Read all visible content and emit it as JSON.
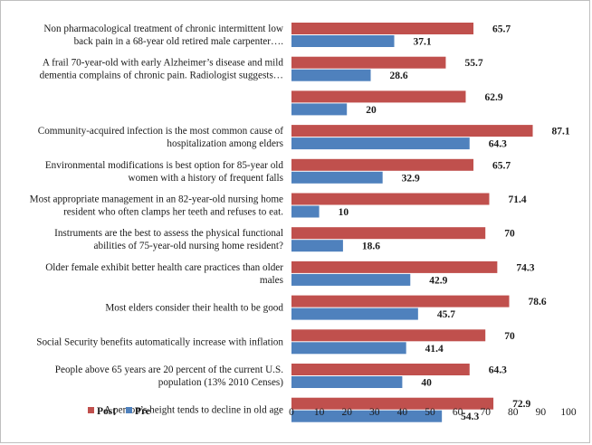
{
  "chart_data": {
    "type": "bar",
    "orientation": "horizontal",
    "categories": [
      [
        "Non pharmacological treatment of chronic intermittent low",
        "back pain in a 68-year old retired male carpenter…."
      ],
      [
        "A frail 70-year-old with early Alzheimer’s disease and mild",
        "dementia complains of chronic pain. Radiologist suggests…"
      ],
      [],
      [
        "Community-acquired infection is the most common cause of",
        "hospitalization among elders"
      ],
      [
        "Environmental modifications is best option for 85-year old",
        "women with a history of frequent falls"
      ],
      [
        "Most appropriate management in an 82-year-old nursing home",
        "resident who often clamps her teeth and refuses to eat."
      ],
      [
        "Instruments are the best to assess the physical functional",
        "abilities of 75-year-old nursing home resident?"
      ],
      [
        "Older female exhibit better health care practices than older",
        "males"
      ],
      [
        "Most elders consider their health to be good"
      ],
      [
        "Social Security benefits automatically increase with inflation"
      ],
      [
        "People above 65 years are 20 percent of the current U.S.",
        "population (13%   2010 Censes)"
      ],
      [
        "A person’s height tends to decline in old age"
      ]
    ],
    "series": [
      {
        "name": "Post",
        "color": "#c0504d",
        "values": [
          65.7,
          55.7,
          62.9,
          87.1,
          65.7,
          71.4,
          70,
          74.3,
          78.6,
          70,
          64.3,
          72.9
        ]
      },
      {
        "name": "Pre",
        "color": "#4f81bd",
        "values": [
          37.1,
          28.6,
          20,
          64.3,
          32.9,
          10,
          18.6,
          42.9,
          45.7,
          41.4,
          40,
          54.3
        ]
      }
    ],
    "xlim": [
      0,
      100
    ],
    "xticks": [
      0,
      10,
      20,
      30,
      40,
      50,
      60,
      70,
      80,
      90,
      100
    ],
    "grid": false,
    "legend_position": "bottom-left",
    "title": "",
    "xlabel": "",
    "ylabel": ""
  }
}
